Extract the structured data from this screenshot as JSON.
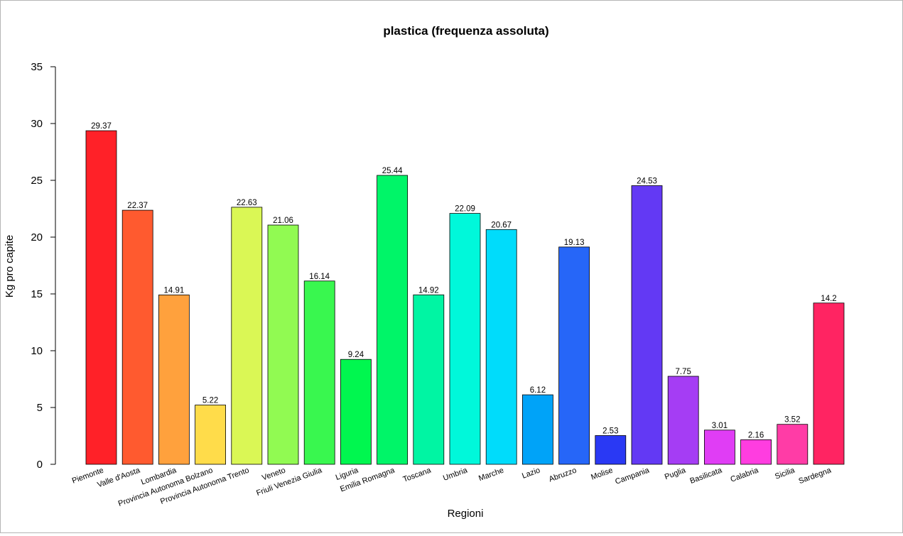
{
  "chart_data": {
    "type": "bar",
    "title": "plastica  (frequenza assoluta)",
    "xlabel": "Regioni",
    "ylabel": "Kg pro capite",
    "ylim": [
      0,
      35
    ],
    "yticks": [
      0,
      5,
      10,
      15,
      20,
      25,
      30,
      35
    ],
    "grid": false,
    "legend": "none",
    "categories": [
      "Piemonte",
      "Valle d'Aosta",
      "Lombardia",
      "Provincia Autonoma Bolzano",
      "Provincia Autonoma Trento",
      "Veneto",
      "Friuli Venezia Giulia",
      "Liguria",
      "Emilia Romagna",
      "Toscana",
      "Umbria",
      "Marche",
      "Lazio",
      "Abruzzo",
      "Molise",
      "Campania",
      "Puglia",
      "Basilicata",
      "Calabria",
      "Sicilia",
      "Sardegna"
    ],
    "values": [
      29.37,
      22.37,
      14.91,
      5.22,
      22.63,
      21.06,
      16.14,
      9.24,
      25.44,
      14.92,
      22.09,
      20.67,
      6.12,
      19.13,
      2.53,
      24.53,
      7.75,
      3.01,
      2.16,
      3.52,
      14.2
    ],
    "value_labels": [
      "29.37",
      "22.37",
      "14.91",
      "5.22",
      "22.63",
      "21.06",
      "16.14",
      "9.24",
      "25.44",
      "14.92",
      "22.09",
      "20.67",
      "6.12",
      "19.13",
      "2.53",
      "24.53",
      "7.75",
      "3.01",
      "2.16",
      "3.52",
      "14.2"
    ],
    "colors": [
      "#ff2128",
      "#ff5a2f",
      "#ffa13d",
      "#ffdc4a",
      "#daf755",
      "#91fa52",
      "#39f74f",
      "#00f74f",
      "#00f568",
      "#00f5a3",
      "#00f8da",
      "#00dcfb",
      "#00a3f8",
      "#2666f8",
      "#2a39f4",
      "#6339f4",
      "#a53df4",
      "#e03df5",
      "#ff3de0",
      "#ff3ca6",
      "#ff2462"
    ]
  }
}
